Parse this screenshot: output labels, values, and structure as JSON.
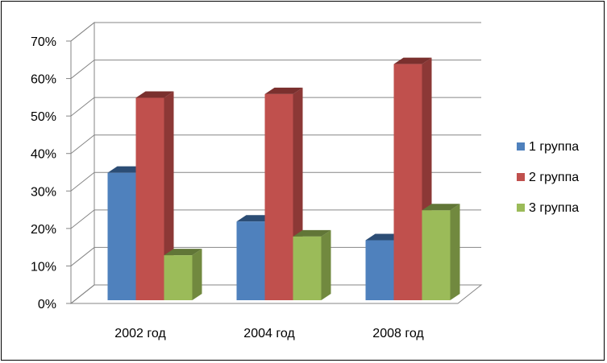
{
  "chart_data": {
    "type": "bar",
    "style": "3d-clustered-column",
    "categories": [
      "2002 год",
      "2004 год",
      "2008 год"
    ],
    "series": [
      {
        "name": "1 группа",
        "values": [
          34,
          21,
          16
        ],
        "color": "#4F81BD",
        "side": "#385D8A",
        "top": "#2C4D75"
      },
      {
        "name": "2 группа",
        "values": [
          54,
          55,
          63
        ],
        "color": "#C0504D",
        "side": "#8C3836",
        "top": "#7A302E"
      },
      {
        "name": "3 группа",
        "values": [
          12,
          17,
          24
        ],
        "color": "#9BBB59",
        "side": "#71893F",
        "top": "#617637"
      }
    ],
    "ylim": [
      0,
      70
    ],
    "yticks": [
      "0%",
      "10%",
      "20%",
      "30%",
      "40%",
      "50%",
      "60%",
      "70%"
    ],
    "grid": true,
    "legend_position": "right"
  }
}
